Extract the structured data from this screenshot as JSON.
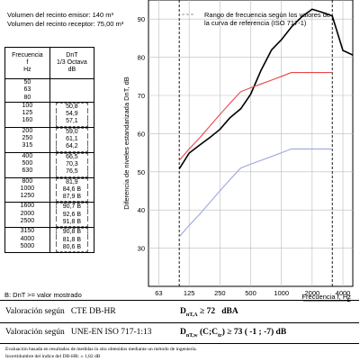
{
  "header": {
    "volume_emitter": "Volumen del recinto emisor: 140 m³",
    "volume_receiver": "Volumen del recinto receptor: 75,00 m³"
  },
  "table": {
    "col1_header": [
      "Frecuencia",
      "f",
      "Hz"
    ],
    "col2_header": [
      "DnT",
      "1/3 Octava",
      "dB"
    ],
    "groups": [
      {
        "freqs": [
          "50",
          "63",
          "80"
        ],
        "values": [
          "",
          "",
          ""
        ]
      },
      {
        "freqs": [
          "100",
          "125",
          "160"
        ],
        "values": [
          "50,8",
          "54,9",
          "57,1"
        ]
      },
      {
        "freqs": [
          "200",
          "250",
          "315"
        ],
        "values": [
          "59,0",
          "61,1",
          "64,2"
        ]
      },
      {
        "freqs": [
          "400",
          "500",
          "630"
        ],
        "values": [
          "66,5",
          "70,3",
          "76,5"
        ]
      },
      {
        "freqs": [
          "800",
          "1000",
          "1250"
        ],
        "values": [
          "81,9",
          "84,6 B",
          "87,9 B"
        ]
      },
      {
        "freqs": [
          "1600",
          "2000",
          "2500"
        ],
        "values": [
          "90,7 B",
          "92,6 B",
          "91,8 B"
        ]
      },
      {
        "freqs": [
          "3150",
          "4000",
          "5000"
        ],
        "values": [
          "90,8 B",
          "81,8 B",
          "80,6 B"
        ]
      }
    ],
    "footnote": "B: DnT >= valor mostrado"
  },
  "chart_data": {
    "type": "line",
    "ylabel": "Diferencia de niveles estandarizada DnT, dB",
    "xlabel": "Frecuencia f, Hz",
    "x_scale": "log",
    "xlim": [
      50,
      5000
    ],
    "ylim": [
      20,
      95
    ],
    "y_ticks": [
      30,
      40,
      50,
      60,
      70,
      80,
      90
    ],
    "x_ticks": [
      63,
      125,
      250,
      500,
      1000,
      2000,
      4000
    ],
    "grid": true,
    "legend": {
      "text": "Rango de frecuencia según los valores de la curva de referencia (ISO 717-1)",
      "placement": "top-right"
    },
    "series": [
      {
        "role": "measured",
        "color": "#000000",
        "x": [
          100,
          125,
          160,
          200,
          250,
          315,
          400,
          500,
          630,
          800,
          1000,
          1250,
          1600,
          2000,
          2500,
          3150,
          4000,
          5000
        ],
        "y": [
          50.8,
          54.9,
          57.1,
          59.0,
          61.1,
          64.2,
          66.5,
          70.3,
          76.5,
          81.9,
          84.6,
          87.9,
          90.7,
          92.6,
          91.8,
          90.8,
          81.8,
          80.6
        ]
      },
      {
        "role": "reference_shifted",
        "color": "#e8474a",
        "x": [
          100,
          125,
          160,
          200,
          250,
          315,
          400,
          500,
          630,
          800,
          1000,
          1250,
          1600,
          2000,
          2500,
          3150
        ],
        "y": [
          53,
          56,
          59,
          62,
          65,
          68,
          71,
          72,
          73,
          74,
          75,
          76,
          76,
          76,
          76,
          76
        ]
      },
      {
        "role": "reference_curve",
        "color": "#9aa6dd",
        "x": [
          100,
          125,
          160,
          200,
          250,
          315,
          400,
          500,
          630,
          800,
          1000,
          1250,
          1600,
          2000,
          2500,
          3150
        ],
        "y": [
          33,
          36,
          39,
          42,
          45,
          48,
          51,
          52,
          53,
          54,
          55,
          56,
          56,
          56,
          56,
          56
        ]
      }
    ]
  },
  "results": {
    "row1_label": "Valoración según",
    "row1_standard": "CTE DB-HR",
    "row1_value": "D",
    "row1_sub": "nT,A",
    "row1_rest": " ≥ 72   dBA",
    "row2_label": "Valoración según",
    "row2_standard": "UNE-EN ISO 717-1:13",
    "row2_value": "D",
    "row2_sub": "nT,w",
    "row2_rest": " (C;C",
    "row2_sub2": "tr",
    "row2_rest2": ") ≥ 73 ( -1 ; -7) dB",
    "note1": "Evaluación basada en resultados de medidas in situ obtenidos mediante un método de ingeniería.",
    "note2": "Incertidumbre del índice del DB-HR: ± 1,82 dB"
  }
}
